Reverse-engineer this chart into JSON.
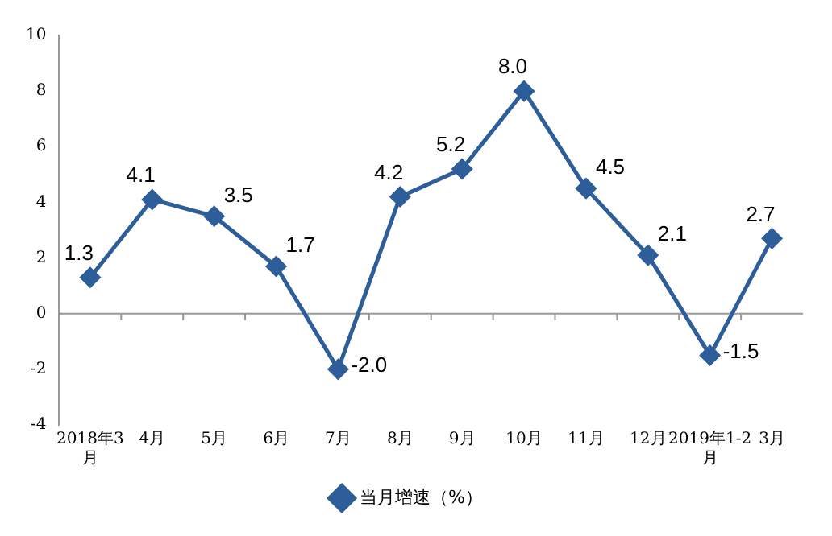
{
  "chart_data": {
    "type": "line",
    "categories": [
      "2018年3月",
      "4月",
      "5月",
      "6月",
      "7月",
      "8月",
      "9月",
      "10月",
      "11月",
      "12月",
      "2019年1-2月",
      "3月"
    ],
    "series": [
      {
        "name": "当月增速（%）",
        "color": "#2e5e9a",
        "values": [
          1.3,
          4.1,
          3.5,
          1.7,
          -2.0,
          4.2,
          5.2,
          8.0,
          4.5,
          2.1,
          -1.5,
          2.7
        ],
        "value_labels": [
          "1.3",
          "4.1",
          "3.5",
          "1.7",
          "-2.0",
          "4.2",
          "5.2",
          "8.0",
          "4.5",
          "2.1",
          "-1.5",
          "2.7"
        ]
      }
    ],
    "ylim": [
      -4,
      10
    ],
    "yticks": [
      -4,
      -2,
      0,
      2,
      4,
      6,
      8,
      10
    ],
    "legend": "bottom",
    "marker": "diamond",
    "line_style": "solid"
  }
}
